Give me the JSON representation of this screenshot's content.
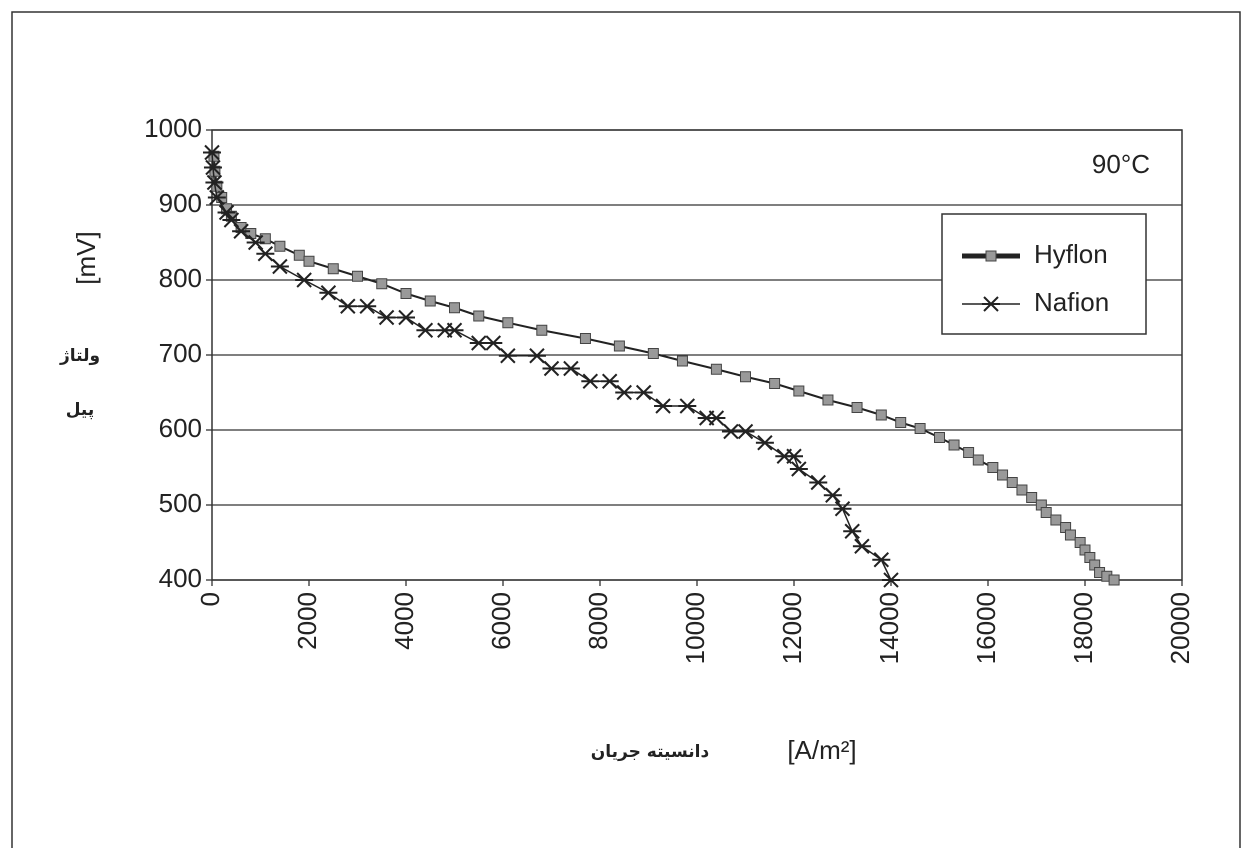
{
  "chart_data": {
    "type": "line",
    "annotation": "90°C",
    "ylabel": "[mV]",
    "ylabel_fa": [
      "ولتاژ",
      "پیل"
    ],
    "xlabel": "[A/m²]",
    "xlabel_fa": "دانسیته جریان",
    "xlim": [
      0,
      20000
    ],
    "xticks": [
      0,
      2000,
      4000,
      6000,
      8000,
      10000,
      12000,
      14000,
      16000,
      18000,
      20000
    ],
    "ylim": [
      400,
      1000
    ],
    "yticks": [
      400,
      500,
      600,
      700,
      800,
      900,
      1000
    ],
    "grid": true,
    "legend": "upper right",
    "series": [
      {
        "name": "Hyflon",
        "color": "#222222",
        "marker": "square",
        "x": [
          40,
          60,
          100,
          200,
          300,
          400,
          600,
          800,
          1100,
          1400,
          1800,
          2000,
          2500,
          3000,
          3500,
          4000,
          4500,
          5000,
          5500,
          6100,
          6800,
          7700,
          8400,
          9100,
          9700,
          10400,
          11000,
          11600,
          12100,
          12700,
          13300,
          13800,
          14200,
          14600,
          15000,
          15300,
          15600,
          15800,
          16100,
          16300,
          16500,
          16700,
          16900,
          17100,
          17200,
          17400,
          17600,
          17700,
          17900,
          18000,
          18100,
          18200,
          18300,
          18450,
          18600
        ],
        "values": [
          965,
          945,
          925,
          910,
          895,
          885,
          870,
          862,
          855,
          845,
          833,
          825,
          815,
          805,
          795,
          782,
          772,
          763,
          752,
          743,
          733,
          722,
          712,
          702,
          692,
          681,
          671,
          662,
          652,
          640,
          630,
          620,
          610,
          602,
          590,
          580,
          570,
          560,
          550,
          540,
          530,
          520,
          510,
          500,
          490,
          480,
          470,
          460,
          450,
          440,
          430,
          420,
          410,
          405,
          400
        ]
      },
      {
        "name": "Nafion",
        "color": "#222222",
        "marker": "star",
        "x": [
          0,
          20,
          50,
          100,
          300,
          400,
          600,
          900,
          1100,
          1400,
          1900,
          2400,
          2800,
          3200,
          3600,
          4000,
          4400,
          4800,
          5000,
          5500,
          5800,
          6100,
          6700,
          7000,
          7400,
          7800,
          8200,
          8500,
          8900,
          9300,
          9800,
          10200,
          10400,
          10700,
          11000,
          11400,
          11800,
          12000,
          12100,
          12500,
          12800,
          13000,
          13200,
          13400,
          13800,
          14000
        ],
        "values": [
          970,
          950,
          930,
          910,
          890,
          880,
          865,
          850,
          835,
          818,
          800,
          783,
          765,
          765,
          750,
          750,
          733,
          733,
          733,
          716,
          716,
          699,
          699,
          682,
          682,
          665,
          665,
          650,
          650,
          632,
          632,
          616,
          616,
          598,
          598,
          583,
          565,
          565,
          548,
          530,
          513,
          495,
          465,
          445,
          427,
          400
        ]
      }
    ]
  }
}
